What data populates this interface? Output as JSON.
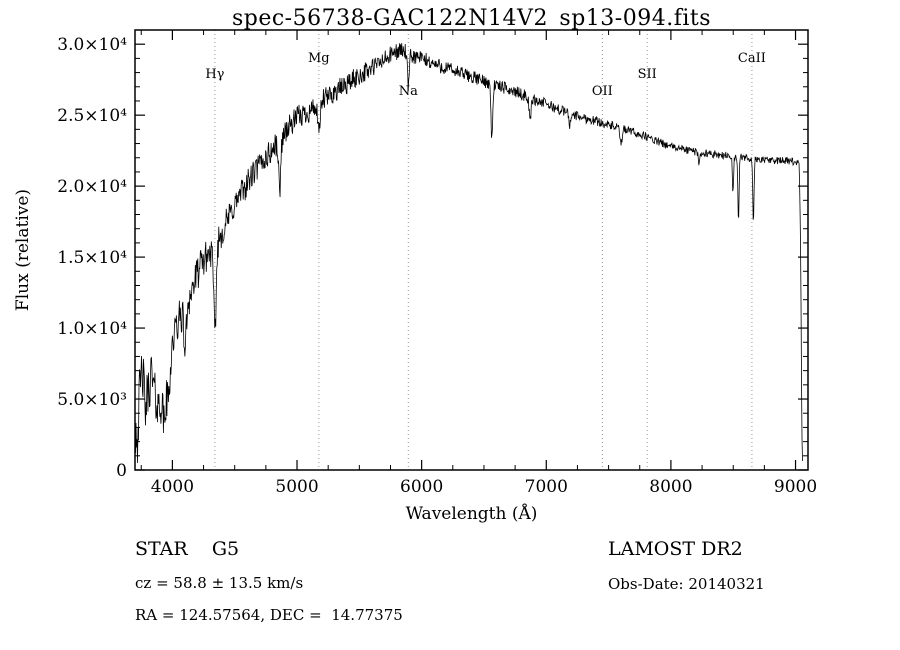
{
  "figure": {
    "title": "spec-56738-GAC122N14V2_sp13-094.fits",
    "annotations": {
      "class_label": "STAR    G5",
      "survey": "LAMOST DR2",
      "cz": "cz = 58.8 ± 13.5 km/s",
      "obs_date": "Obs-Date: 20140321",
      "coords": "RA = 124.57564, DEC =  14.77375"
    }
  },
  "chart_data": {
    "type": "line",
    "title": "spec-56738-GAC122N14V2_sp13-094.fits",
    "xlabel": "Wavelength (Å)",
    "ylabel": "Flux (relative)",
    "xlim": [
      3700,
      9100
    ],
    "ylim": [
      0,
      31000
    ],
    "grid": false,
    "xticks": [
      4000,
      5000,
      6000,
      7000,
      8000,
      9000
    ],
    "yticks": [
      0,
      5000,
      10000,
      15000,
      20000,
      25000,
      30000
    ],
    "ytick_labels": [
      "0",
      "5.0×10³",
      "1.0×10⁴",
      "1.5×10⁴",
      "2.0×10⁴",
      "2.5×10⁴",
      "3.0×10⁴"
    ],
    "line_markers": [
      {
        "label": "Hγ",
        "wavelength": 4341,
        "row": 1
      },
      {
        "label": "Mg",
        "wavelength": 5175,
        "row": 0
      },
      {
        "label": "Na",
        "wavelength": 5893,
        "row": 2
      },
      {
        "label": "OII",
        "wavelength": 7450,
        "row": 2
      },
      {
        "label": "SII",
        "wavelength": 7810,
        "row": 1
      },
      {
        "label": "CaII",
        "wavelength": 8650,
        "row": 0
      }
    ],
    "marker_line_color": "#999999",
    "trace_color": "#000000",
    "spectrum": {
      "start": 3700,
      "end": 9056,
      "step": 4,
      "continuum": [
        [
          3700,
          3200
        ],
        [
          3720,
          2600
        ],
        [
          3740,
          5500
        ],
        [
          3760,
          7200
        ],
        [
          3780,
          4200
        ],
        [
          3800,
          5200
        ],
        [
          3830,
          6800
        ],
        [
          3860,
          5200
        ],
        [
          3890,
          4300
        ],
        [
          3920,
          5500
        ],
        [
          3950,
          6500
        ],
        [
          3980,
          8200
        ],
        [
          4000,
          9000
        ],
        [
          4050,
          10500
        ],
        [
          4100,
          11500
        ],
        [
          4150,
          12500
        ],
        [
          4200,
          13800
        ],
        [
          4250,
          14800
        ],
        [
          4300,
          15300
        ],
        [
          4350,
          15800
        ],
        [
          4400,
          16800
        ],
        [
          4500,
          18700
        ],
        [
          4600,
          20200
        ],
        [
          4700,
          21500
        ],
        [
          4800,
          22500
        ],
        [
          4900,
          23800
        ],
        [
          5000,
          24800
        ],
        [
          5100,
          25300
        ],
        [
          5200,
          26000
        ],
        [
          5300,
          26600
        ],
        [
          5400,
          27200
        ],
        [
          5500,
          27800
        ],
        [
          5600,
          28300
        ],
        [
          5700,
          28900
        ],
        [
          5800,
          29500
        ],
        [
          5850,
          29600
        ],
        [
          5900,
          29200
        ],
        [
          6000,
          29000
        ],
        [
          6100,
          28600
        ],
        [
          6200,
          28300
        ],
        [
          6300,
          28000
        ],
        [
          6400,
          27700
        ],
        [
          6500,
          27400
        ],
        [
          6600,
          27100
        ],
        [
          6700,
          26800
        ],
        [
          6800,
          26500
        ],
        [
          6900,
          26100
        ],
        [
          7000,
          25800
        ],
        [
          7100,
          25400
        ],
        [
          7200,
          25100
        ],
        [
          7300,
          24800
        ],
        [
          7400,
          24600
        ],
        [
          7500,
          24300
        ],
        [
          7600,
          24100
        ],
        [
          7700,
          23800
        ],
        [
          7800,
          23500
        ],
        [
          7900,
          23100
        ],
        [
          8000,
          22800
        ],
        [
          8100,
          22600
        ],
        [
          8200,
          22400
        ],
        [
          8300,
          22300
        ],
        [
          8400,
          22200
        ],
        [
          8500,
          22100
        ],
        [
          8600,
          22000
        ],
        [
          8700,
          21900
        ],
        [
          8800,
          21800
        ],
        [
          8900,
          21800
        ],
        [
          9000,
          21700
        ],
        [
          9030,
          21600
        ],
        [
          9042,
          15000
        ],
        [
          9050,
          3000
        ],
        [
          9056,
          400
        ]
      ],
      "absorption_lines": [
        {
          "center": 3934,
          "depth": 2500,
          "sigma": 12
        },
        {
          "center": 3969,
          "depth": 2500,
          "sigma": 12
        },
        {
          "center": 4102,
          "depth": 3000,
          "sigma": 10
        },
        {
          "center": 4341,
          "depth": 6000,
          "sigma": 10
        },
        {
          "center": 4861,
          "depth": 3500,
          "sigma": 9
        },
        {
          "center": 5175,
          "depth": 2200,
          "sigma": 10
        },
        {
          "center": 5893,
          "depth": 2400,
          "sigma": 7
        },
        {
          "center": 6563,
          "depth": 3800,
          "sigma": 7
        },
        {
          "center": 6870,
          "depth": 1500,
          "sigma": 8
        },
        {
          "center": 7190,
          "depth": 800,
          "sigma": 8
        },
        {
          "center": 7600,
          "depth": 1200,
          "sigma": 9
        },
        {
          "center": 8227,
          "depth": 800,
          "sigma": 6
        },
        {
          "center": 8498,
          "depth": 2500,
          "sigma": 5
        },
        {
          "center": 8542,
          "depth": 4500,
          "sigma": 5
        },
        {
          "center": 8662,
          "depth": 4500,
          "sigma": 5
        }
      ],
      "noise_amplitude": [
        [
          3700,
          2300
        ],
        [
          3850,
          1700
        ],
        [
          4000,
          1400
        ],
        [
          4200,
          1200
        ],
        [
          4500,
          1000
        ],
        [
          4800,
          900
        ],
        [
          5200,
          800
        ],
        [
          5600,
          700
        ],
        [
          6000,
          550
        ],
        [
          6500,
          450
        ],
        [
          7000,
          380
        ],
        [
          7500,
          320
        ],
        [
          8000,
          280
        ],
        [
          8600,
          260
        ],
        [
          9050,
          260
        ]
      ]
    }
  }
}
